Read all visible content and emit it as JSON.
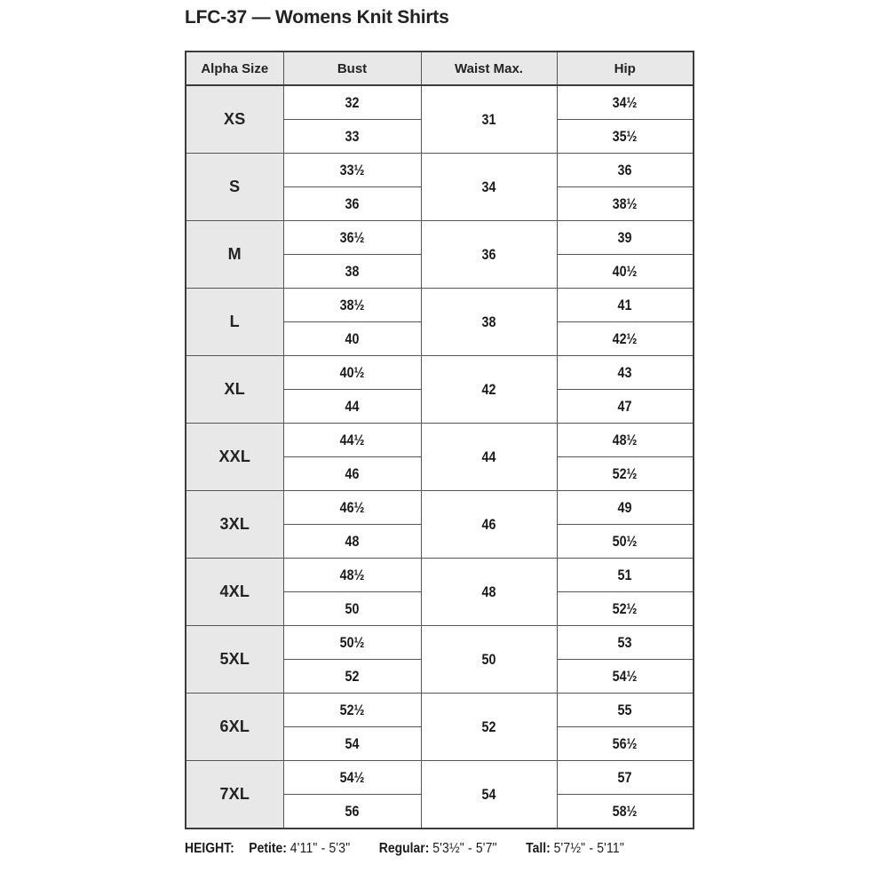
{
  "page": {
    "title": "LFC-37 — Womens Knit Shirts"
  },
  "table": {
    "headers": [
      "Alpha Size",
      "Bust",
      "Waist Max.",
      "Hip"
    ],
    "rows": [
      {
        "size": "XS",
        "bust": [
          "32",
          "33"
        ],
        "waist": "31",
        "hip": [
          "34½",
          "35½"
        ]
      },
      {
        "size": "S",
        "bust": [
          "33½",
          "36"
        ],
        "waist": "34",
        "hip": [
          "36",
          "38½"
        ]
      },
      {
        "size": "M",
        "bust": [
          "36½",
          "38"
        ],
        "waist": "36",
        "hip": [
          "39",
          "40½"
        ]
      },
      {
        "size": "L",
        "bust": [
          "38½",
          "40"
        ],
        "waist": "38",
        "hip": [
          "41",
          "42½"
        ]
      },
      {
        "size": "XL",
        "bust": [
          "40½",
          "44"
        ],
        "waist": "42",
        "hip": [
          "43",
          "47"
        ]
      },
      {
        "size": "XXL",
        "bust": [
          "44½",
          "46"
        ],
        "waist": "44",
        "hip": [
          "48½",
          "52½"
        ]
      },
      {
        "size": "3XL",
        "bust": [
          "46½",
          "48"
        ],
        "waist": "46",
        "hip": [
          "49",
          "50½"
        ]
      },
      {
        "size": "4XL",
        "bust": [
          "48½",
          "50"
        ],
        "waist": "48",
        "hip": [
          "51",
          "52½"
        ]
      },
      {
        "size": "5XL",
        "bust": [
          "50½",
          "52"
        ],
        "waist": "50",
        "hip": [
          "53",
          "54½"
        ]
      },
      {
        "size": "6XL",
        "bust": [
          "52½",
          "54"
        ],
        "waist": "52",
        "hip": [
          "55",
          "56½"
        ]
      },
      {
        "size": "7XL",
        "bust": [
          "54½",
          "56"
        ],
        "waist": "54",
        "hip": [
          "57",
          "58½"
        ]
      }
    ]
  },
  "footer": {
    "height_label": "HEIGHT:",
    "petite_label": "Petite:",
    "petite_value": "4'11\" - 5'3\"",
    "regular_label": "Regular:",
    "regular_value": "5'3½\" - 5'7\"",
    "tall_label": "Tall:",
    "tall_value": "5'7½\" - 5'11\""
  },
  "colors": {
    "header_bg": "#e8e8e8",
    "border_heavy": "#3c3c3c",
    "border_light": "#565656",
    "text": "#1c1c1c"
  }
}
